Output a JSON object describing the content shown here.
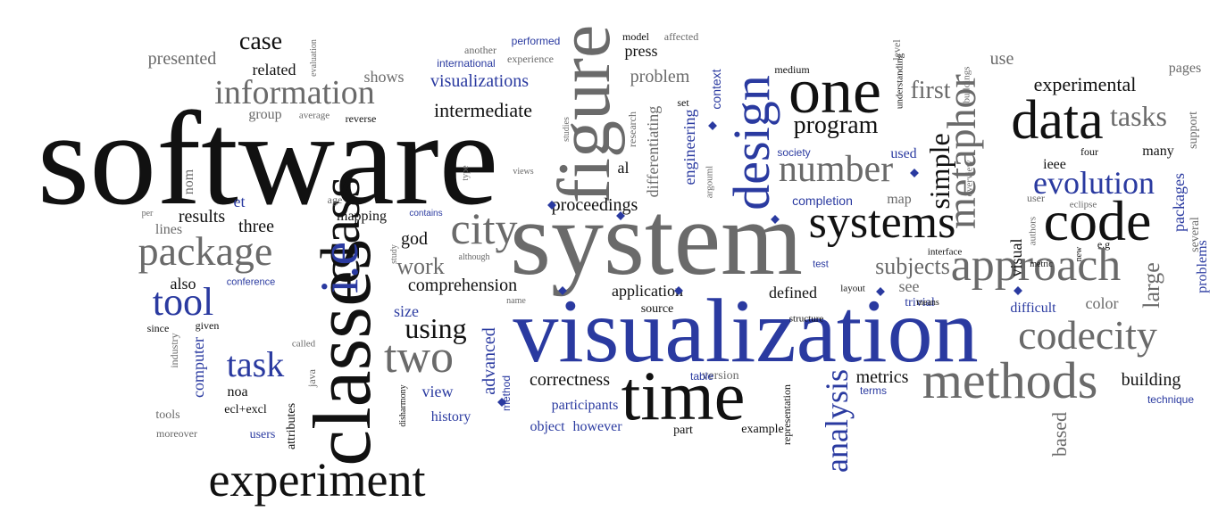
{
  "colors": {
    "black": "#111111",
    "gray": "#6a6a6a",
    "blue": "#2a3aa0"
  },
  "words": [
    {
      "text": "software",
      "c": "black"
    },
    {
      "text": "system",
      "c": "gray"
    },
    {
      "text": "visualization",
      "c": "blue"
    },
    {
      "text": "classes",
      "c": "black"
    },
    {
      "text": "time",
      "c": "black"
    },
    {
      "text": "figure",
      "c": "gray"
    },
    {
      "text": "class",
      "c": "black"
    },
    {
      "text": "i.e",
      "c": "blue"
    },
    {
      "text": "design",
      "c": "blue"
    },
    {
      "text": "one",
      "c": "black"
    },
    {
      "text": "data",
      "c": "black"
    },
    {
      "text": "code",
      "c": "black"
    },
    {
      "text": "methods",
      "c": "gray"
    },
    {
      "text": "experiment",
      "c": "black"
    },
    {
      "text": "approach",
      "c": "gray"
    },
    {
      "text": "systems",
      "c": "black"
    },
    {
      "text": "city",
      "c": "gray"
    },
    {
      "text": "two",
      "c": "gray"
    },
    {
      "text": "codecity",
      "c": "gray"
    },
    {
      "text": "metaphor",
      "c": "gray"
    },
    {
      "text": "package",
      "c": "gray"
    },
    {
      "text": "information",
      "c": "gray"
    },
    {
      "text": "number",
      "c": "gray"
    },
    {
      "text": "evolution",
      "c": "blue"
    },
    {
      "text": "tool",
      "c": "blue"
    },
    {
      "text": "task",
      "c": "blue"
    },
    {
      "text": "analysis",
      "c": "blue"
    },
    {
      "text": "program",
      "c": "black"
    },
    {
      "text": "tasks",
      "c": "gray"
    },
    {
      "text": "simple",
      "c": "black"
    },
    {
      "text": "large",
      "c": "gray"
    },
    {
      "text": "subjects",
      "c": "gray"
    },
    {
      "text": "using",
      "c": "black"
    },
    {
      "text": "work",
      "c": "gray"
    },
    {
      "text": "case",
      "c": "black"
    },
    {
      "text": "experimental",
      "c": "black"
    },
    {
      "text": "first",
      "c": "gray"
    },
    {
      "text": "intermediate",
      "c": "black"
    },
    {
      "text": "comprehension",
      "c": "black"
    },
    {
      "text": "presented",
      "c": "gray"
    },
    {
      "text": "visualizations",
      "c": "blue"
    },
    {
      "text": "proceedings",
      "c": "black"
    },
    {
      "text": "results",
      "c": "black"
    },
    {
      "text": "three",
      "c": "black"
    },
    {
      "text": "god",
      "c": "black"
    },
    {
      "text": "metrics",
      "c": "black"
    },
    {
      "text": "correctness",
      "c": "black"
    },
    {
      "text": "building",
      "c": "black"
    },
    {
      "text": "based",
      "c": "gray"
    },
    {
      "text": "use",
      "c": "gray"
    },
    {
      "text": "problem",
      "c": "gray"
    },
    {
      "text": "related",
      "c": "black"
    },
    {
      "text": "shows",
      "c": "gray"
    },
    {
      "text": "press",
      "c": "black"
    },
    {
      "text": "engineering",
      "c": "blue"
    },
    {
      "text": "differentiating",
      "c": "gray"
    },
    {
      "text": "al",
      "c": "black"
    },
    {
      "text": "et",
      "c": "blue"
    },
    {
      "text": "application",
      "c": "black"
    },
    {
      "text": "defined",
      "c": "black"
    },
    {
      "text": "advanced",
      "c": "blue"
    },
    {
      "text": "computer",
      "c": "blue"
    },
    {
      "text": "see",
      "c": "gray"
    },
    {
      "text": "color",
      "c": "gray"
    },
    {
      "text": "difficult",
      "c": "blue"
    },
    {
      "text": "packages",
      "c": "blue"
    },
    {
      "text": "problems",
      "c": "blue"
    },
    {
      "text": "view",
      "c": "blue"
    },
    {
      "text": "history",
      "c": "blue"
    },
    {
      "text": "size",
      "c": "blue"
    },
    {
      "text": "participants",
      "c": "blue"
    },
    {
      "text": "object",
      "c": "blue"
    },
    {
      "text": "however",
      "c": "blue"
    },
    {
      "text": "used",
      "c": "blue"
    },
    {
      "text": "pages",
      "c": "gray"
    },
    {
      "text": "many",
      "c": "black"
    },
    {
      "text": "several",
      "c": "gray"
    },
    {
      "text": "support",
      "c": "gray"
    },
    {
      "text": "ieee",
      "c": "black"
    },
    {
      "text": "map",
      "c": "gray"
    },
    {
      "text": "group",
      "c": "gray"
    },
    {
      "text": "also",
      "c": "black"
    },
    {
      "text": "mapping",
      "c": "black"
    },
    {
      "text": "lines",
      "c": "gray"
    },
    {
      "text": "noa",
      "c": "black"
    },
    {
      "text": "ecl+excl",
      "c": "black"
    },
    {
      "text": "tools",
      "c": "gray"
    },
    {
      "text": "moreover",
      "c": "gray"
    },
    {
      "text": "users",
      "c": "blue"
    },
    {
      "text": "attributes",
      "c": "black"
    },
    {
      "text": "java",
      "c": "gray"
    },
    {
      "text": "nom",
      "c": "gray"
    },
    {
      "text": "source",
      "c": "black"
    },
    {
      "text": "part",
      "c": "black"
    },
    {
      "text": "example",
      "c": "black"
    },
    {
      "text": "version",
      "c": "gray"
    },
    {
      "text": "terms",
      "c": "blue"
    },
    {
      "text": "trivial",
      "c": "blue"
    },
    {
      "text": "technique",
      "c": "blue"
    },
    {
      "text": "completion",
      "c": "blue"
    },
    {
      "text": "society",
      "c": "blue"
    },
    {
      "text": "context",
      "c": "blue"
    },
    {
      "text": "performed",
      "c": "blue"
    },
    {
      "text": "international",
      "c": "blue"
    },
    {
      "text": "model",
      "c": "black"
    },
    {
      "text": "experience",
      "c": "gray"
    },
    {
      "text": "another",
      "c": "gray"
    },
    {
      "text": "affected",
      "c": "gray"
    },
    {
      "text": "medium",
      "c": "black"
    },
    {
      "text": "evaluation",
      "c": "gray"
    },
    {
      "text": "average",
      "c": "gray"
    },
    {
      "text": "reverse",
      "c": "black"
    },
    {
      "text": "age",
      "c": "gray"
    },
    {
      "text": "per",
      "c": "gray"
    },
    {
      "text": "since",
      "c": "black"
    },
    {
      "text": "given",
      "c": "black"
    },
    {
      "text": "industry",
      "c": "gray"
    },
    {
      "text": "called",
      "c": "gray"
    },
    {
      "text": "disharmony",
      "c": "black"
    },
    {
      "text": "name",
      "c": "gray"
    },
    {
      "text": "method",
      "c": "blue"
    },
    {
      "text": "study",
      "c": "gray"
    },
    {
      "text": "although",
      "c": "gray"
    },
    {
      "text": "conference",
      "c": "blue"
    },
    {
      "text": "contains",
      "c": "blue"
    },
    {
      "text": "type",
      "c": "gray"
    },
    {
      "text": "views",
      "c": "gray"
    },
    {
      "text": "studies",
      "c": "gray"
    },
    {
      "text": "research",
      "c": "gray"
    },
    {
      "text": "set",
      "c": "black"
    },
    {
      "text": "argouml",
      "c": "gray"
    },
    {
      "text": "understanding",
      "c": "black"
    },
    {
      "text": "buildings",
      "c": "gray"
    },
    {
      "text": "level",
      "c": "gray"
    },
    {
      "text": "overview",
      "c": "gray"
    },
    {
      "text": "visual",
      "c": "black"
    },
    {
      "text": "authors",
      "c": "gray"
    },
    {
      "text": "user",
      "c": "gray"
    },
    {
      "text": "eclipse",
      "c": "gray"
    },
    {
      "text": "four",
      "c": "black"
    },
    {
      "text": "e.g",
      "c": "black"
    },
    {
      "text": "new",
      "c": "black"
    },
    {
      "text": "metric",
      "c": "black"
    },
    {
      "text": "interface",
      "c": "black"
    },
    {
      "text": "test",
      "c": "blue"
    },
    {
      "text": "layout",
      "c": "black"
    },
    {
      "text": "means",
      "c": "black"
    },
    {
      "text": "structure",
      "c": "black"
    },
    {
      "text": "representation",
      "c": "black"
    },
    {
      "text": "table",
      "c": "blue"
    }
  ]
}
